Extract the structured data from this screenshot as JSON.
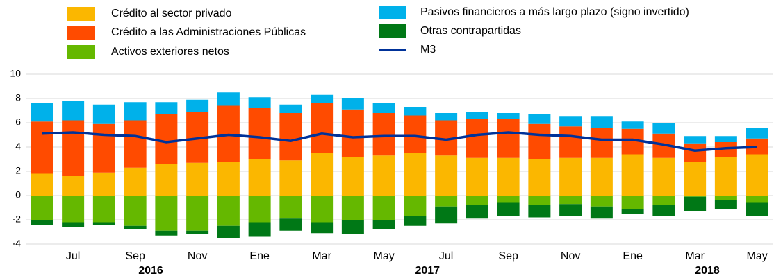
{
  "chart_data": {
    "type": "bar",
    "categories": [
      null,
      "Jul",
      null,
      "Sep",
      null,
      "Nov",
      null,
      "Ene",
      null,
      "Mar",
      null,
      "May",
      null,
      "Jul",
      null,
      "Sep",
      null,
      "Nov",
      null,
      "Ene",
      null,
      "Mar",
      null,
      "May"
    ],
    "years": [
      "2016",
      "2017",
      "2018"
    ],
    "ylim": [
      -4,
      10
    ],
    "yticks": [
      -4,
      -2,
      0,
      2,
      4,
      6,
      8,
      10
    ],
    "grid": true,
    "series": [
      {
        "name": "Crédito al sector privado",
        "color": "#fbb700",
        "values": [
          1.8,
          1.6,
          1.9,
          2.3,
          2.6,
          2.7,
          2.8,
          3.0,
          2.9,
          3.5,
          3.2,
          3.3,
          3.5,
          3.3,
          3.1,
          3.1,
          3.0,
          3.1,
          3.1,
          3.4,
          3.1,
          2.8,
          3.2,
          3.4
        ]
      },
      {
        "name": "Crédito a las Administraciones Públicas",
        "color": "#ff4b00",
        "values": [
          4.3,
          4.6,
          4.0,
          3.9,
          4.1,
          4.2,
          4.6,
          4.2,
          3.9,
          4.1,
          3.9,
          3.5,
          3.1,
          2.9,
          3.2,
          3.2,
          2.9,
          2.6,
          2.5,
          2.1,
          2.0,
          1.5,
          1.2,
          1.3
        ]
      },
      {
        "name": "Activos exteriores netos",
        "color": "#65b800",
        "values": [
          -2.0,
          -2.2,
          -2.2,
          -2.5,
          -2.9,
          -2.9,
          -2.5,
          -2.2,
          -1.9,
          -2.2,
          -2.0,
          -2.0,
          -1.7,
          -0.9,
          -0.8,
          -0.6,
          -0.8,
          -0.7,
          -0.9,
          -1.1,
          -0.8,
          -0.1,
          -0.4,
          -0.6
        ]
      },
      {
        "name": "Pasivos financieros a más largo plazo (signo invertido)",
        "color": "#00b1ea",
        "values": [
          1.5,
          1.6,
          1.6,
          1.5,
          1.0,
          1.0,
          1.1,
          0.9,
          0.7,
          0.7,
          0.9,
          0.8,
          0.7,
          0.6,
          0.6,
          0.5,
          0.8,
          0.8,
          0.9,
          0.6,
          0.9,
          0.6,
          0.5,
          0.9
        ]
      },
      {
        "name": "Otras contrapartidas",
        "color": "#007816",
        "values": [
          -0.45,
          -0.4,
          -0.2,
          -0.3,
          -0.4,
          -0.3,
          -1.0,
          -1.2,
          -1.0,
          -0.9,
          -1.2,
          -0.8,
          -0.8,
          -1.4,
          -1.1,
          -1.1,
          -1.0,
          -1.0,
          -1.0,
          -0.4,
          -0.9,
          -1.2,
          -0.7,
          -1.1
        ]
      },
      {
        "name": "M3",
        "color": "#003299",
        "type": "line",
        "values": [
          5.1,
          5.2,
          5.0,
          4.9,
          4.4,
          4.7,
          5.0,
          4.8,
          4.5,
          5.1,
          4.8,
          4.9,
          4.9,
          4.6,
          5.0,
          5.2,
          5.0,
          4.9,
          4.6,
          4.6,
          4.2,
          3.7,
          3.9,
          4.0
        ]
      }
    ]
  }
}
